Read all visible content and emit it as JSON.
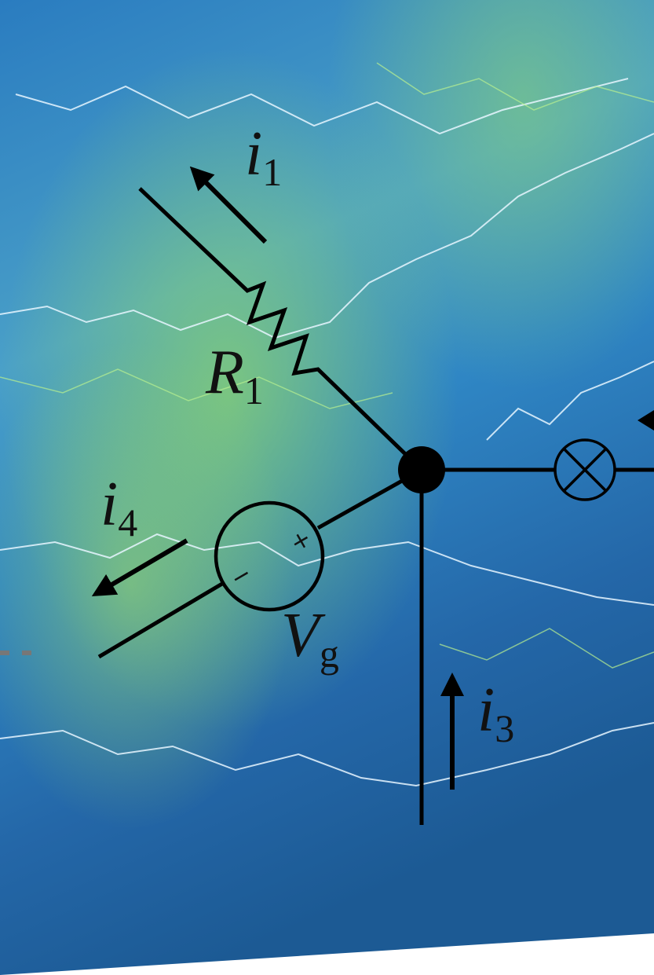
{
  "labels": [
    {
      "symbol": "i",
      "subscript": "1"
    },
    {
      "symbol": "R",
      "subscript": "1"
    },
    {
      "symbol": "i",
      "subscript": "4"
    },
    {
      "symbol": "V",
      "subscript": "g"
    },
    {
      "symbol": "i",
      "subscript": "3"
    }
  ],
  "source_terminals": {
    "plus": "+",
    "minus": "−"
  }
}
